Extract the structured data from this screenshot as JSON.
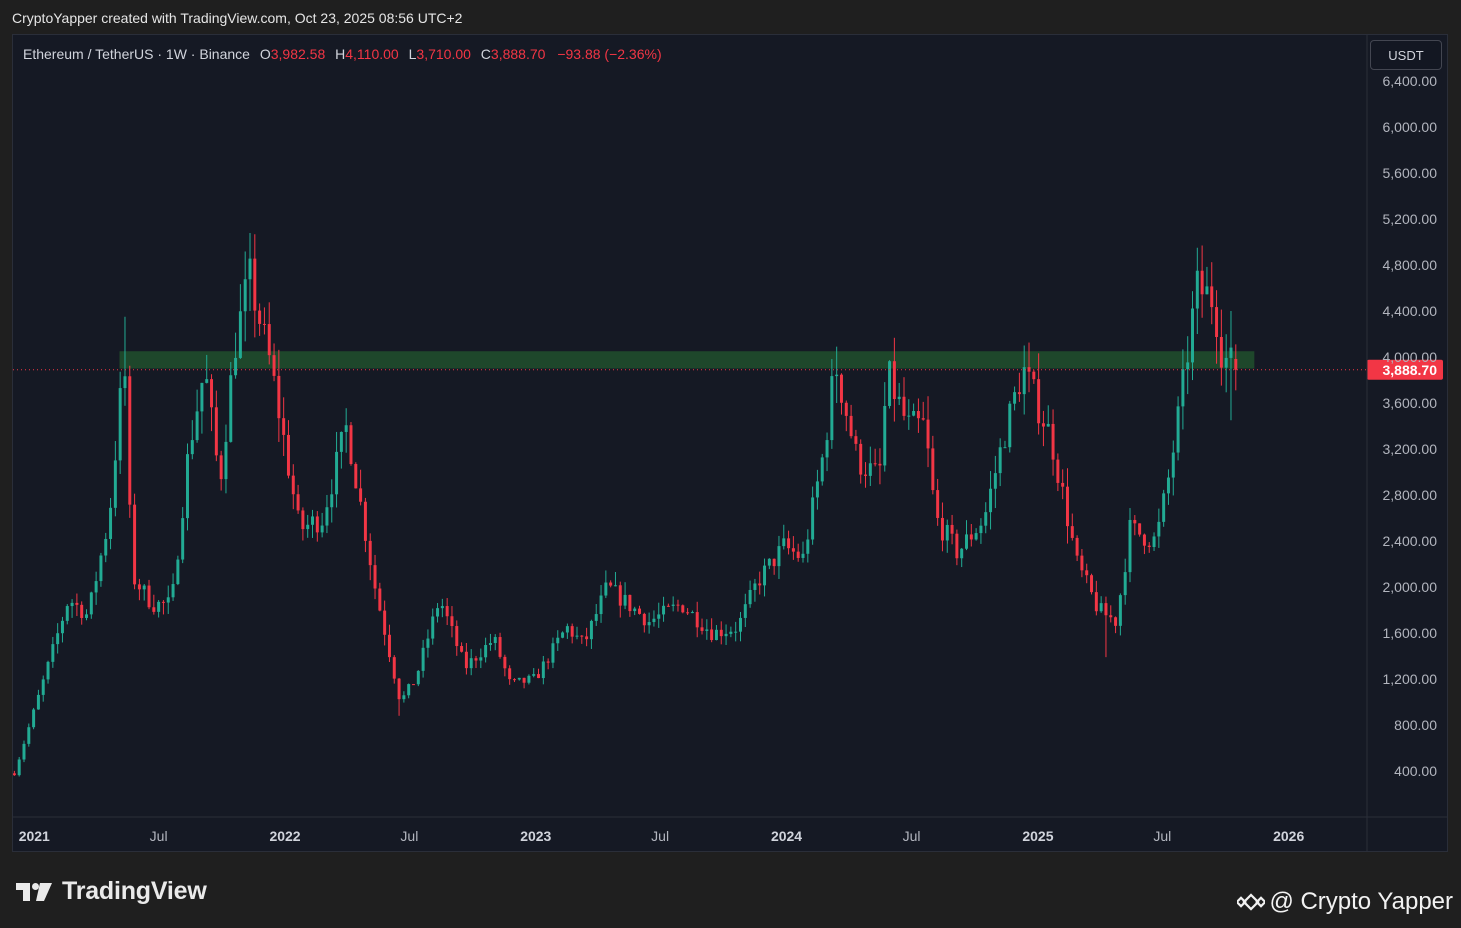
{
  "header": {
    "caption": "CryptoYapper created with TradingView.com, Oct 23, 2025 08:56 UTC+2"
  },
  "legend": {
    "symbol": "Ethereum / TetherUS · 1W · Binance",
    "open_label": "O",
    "open": "3,982.58",
    "high_label": "H",
    "high": "4,110.00",
    "low_label": "L",
    "low": "3,710.00",
    "close_label": "C",
    "close": "3,888.70",
    "change": "−93.88 (−2.36%)"
  },
  "currency_button": {
    "label": "USDT"
  },
  "footer": {
    "brand": "TradingView",
    "credit": "@ Crypto Yapper"
  },
  "colors": {
    "up": "#22ab94",
    "down": "#f23645",
    "zone": "#1f4a2c",
    "background": "#151924",
    "price_tag": "#f23645"
  },
  "chart_data": {
    "type": "candlestick",
    "title": "Ethereum / TetherUS · 1W · Binance",
    "y_axis": {
      "ticks": [
        400,
        800,
        1200,
        1600,
        2000,
        2400,
        2800,
        3200,
        3600,
        4000,
        4400,
        4800,
        5200,
        5600,
        6000,
        6400
      ],
      "tick_labels": [
        "400.00",
        "800.00",
        "1,200.00",
        "1,600.00",
        "2,000.00",
        "2,400.00",
        "2,800.00",
        "3,200.00",
        "3,600.00",
        "4,000.00",
        "4,400.00",
        "4,800.00",
        "5,200.00",
        "5,600.00",
        "6,000.00",
        "6,400.00"
      ],
      "range": [
        0,
        6800
      ]
    },
    "x_axis": {
      "range": [
        "2020-12-01",
        "2026-04-25"
      ],
      "ticks": [
        {
          "date": "2021-01-01",
          "label": "2021",
          "major": true
        },
        {
          "date": "2021-07-01",
          "label": "Jul",
          "major": false
        },
        {
          "date": "2022-01-01",
          "label": "2022",
          "major": true
        },
        {
          "date": "2022-07-01",
          "label": "Jul",
          "major": false
        },
        {
          "date": "2023-01-01",
          "label": "2023",
          "major": true
        },
        {
          "date": "2023-07-01",
          "label": "Jul",
          "major": false
        },
        {
          "date": "2024-01-01",
          "label": "2024",
          "major": true
        },
        {
          "date": "2024-07-01",
          "label": "Jul",
          "major": false
        },
        {
          "date": "2025-01-01",
          "label": "2025",
          "major": true
        },
        {
          "date": "2025-07-01",
          "label": "Jul",
          "major": false
        },
        {
          "date": "2026-01-01",
          "label": "2026",
          "major": true
        }
      ]
    },
    "zone": {
      "from_date": "2021-05-05",
      "to_date": "2025-11-12",
      "low": 3900,
      "high": 4050
    },
    "last_price": {
      "value": 3888.7,
      "label": "3,888.70"
    },
    "anchors": [
      [
        "2020-12-03",
        380
      ],
      [
        "2021-01-10",
        1100
      ],
      [
        "2021-02-20",
        1900
      ],
      [
        "2021-03-20",
        1750
      ],
      [
        "2021-04-20",
        2600
      ],
      [
        "2021-05-12",
        4000
      ],
      [
        "2021-05-23",
        2100
      ],
      [
        "2021-06-22",
        1850
      ],
      [
        "2021-07-20",
        1850
      ],
      [
        "2021-08-14",
        3200
      ],
      [
        "2021-09-06",
        3900
      ],
      [
        "2021-09-28",
        2900
      ],
      [
        "2021-10-20",
        4100
      ],
      [
        "2021-11-10",
        4700
      ],
      [
        "2021-12-12",
        3900
      ],
      [
        "2022-01-22",
        2500
      ],
      [
        "2022-02-24",
        2600
      ],
      [
        "2022-04-01",
        3400
      ],
      [
        "2022-05-12",
        2000
      ],
      [
        "2022-06-18",
        1000
      ],
      [
        "2022-07-10",
        1200
      ],
      [
        "2022-08-14",
        1900
      ],
      [
        "2022-09-20",
        1300
      ],
      [
        "2022-11-01",
        1550
      ],
      [
        "2022-11-25",
        1150
      ],
      [
        "2022-12-31",
        1200
      ],
      [
        "2023-02-15",
        1650
      ],
      [
        "2023-03-12",
        1500
      ],
      [
        "2023-04-15",
        2000
      ],
      [
        "2023-06-15",
        1700
      ],
      [
        "2023-08-01",
        1850
      ],
      [
        "2023-09-15",
        1600
      ],
      [
        "2023-10-22",
        1650
      ],
      [
        "2023-11-20",
        2050
      ],
      [
        "2023-12-28",
        2350
      ],
      [
        "2024-01-25",
        2250
      ],
      [
        "2024-02-25",
        3200
      ],
      [
        "2024-03-12",
        3950
      ],
      [
        "2024-04-13",
        3100
      ],
      [
        "2024-05-15",
        2950
      ],
      [
        "2024-05-27",
        3850
      ],
      [
        "2024-06-25",
        3400
      ],
      [
        "2024-07-20",
        3400
      ],
      [
        "2024-08-05",
        2600
      ],
      [
        "2024-09-06",
        2300
      ],
      [
        "2024-10-15",
        2600
      ],
      [
        "2024-11-12",
        3300
      ],
      [
        "2024-12-10",
        3900
      ],
      [
        "2025-01-20",
        3300
      ],
      [
        "2025-02-27",
        2200
      ],
      [
        "2025-03-30",
        1800
      ],
      [
        "2025-04-25",
        1700
      ],
      [
        "2025-05-15",
        2500
      ],
      [
        "2025-06-22",
        2400
      ],
      [
        "2025-07-12",
        3000
      ],
      [
        "2025-07-30",
        3700
      ],
      [
        "2025-08-20",
        4600
      ],
      [
        "2025-09-14",
        4500
      ],
      [
        "2025-09-27",
        4000
      ],
      [
        "2025-10-20",
        3888.7
      ]
    ],
    "spikes": [
      [
        "2021-05-12",
        4350,
        3700
      ],
      [
        "2021-11-10",
        4870,
        4400
      ],
      [
        "2022-06-18",
        1000,
        880
      ],
      [
        "2024-03-12",
        4090,
        3600
      ],
      [
        "2024-12-10",
        4100,
        3500
      ],
      [
        "2025-04-08",
        1500,
        1390
      ],
      [
        "2025-08-24",
        4950,
        4200
      ],
      [
        "2025-10-10",
        4400,
        3450
      ]
    ],
    "candle_count": 280,
    "candle_interval": "1W"
  }
}
